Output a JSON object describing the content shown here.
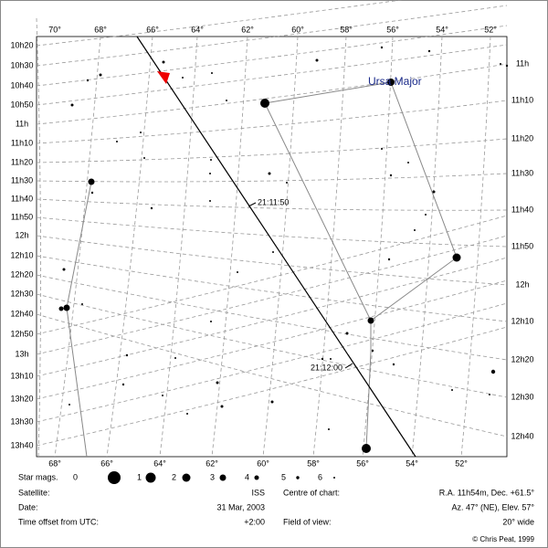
{
  "axes": {
    "top": [
      "70°",
      "68°",
      "66°",
      "64°",
      "62°",
      "60°",
      "58°",
      "56°",
      "54°",
      "52°"
    ],
    "left": [
      "10h20",
      "10h30",
      "10h40",
      "10h50",
      "11h",
      "11h10",
      "11h20",
      "11h30",
      "11h40",
      "11h50",
      "12h",
      "12h10",
      "12h20",
      "12h30",
      "12h40",
      "12h50",
      "13h",
      "13h10",
      "13h20",
      "13h30",
      "13h40"
    ],
    "right": [
      "11h",
      "11h10",
      "11h20",
      "11h30",
      "11h40",
      "11h50",
      "12h",
      "12h10",
      "12h20",
      "12h30",
      "12h40"
    ],
    "bottom": [
      "68°",
      "66°",
      "64°",
      "62°",
      "60°",
      "58°",
      "56°",
      "54°",
      "52°"
    ]
  },
  "labels": {
    "constellation": "Ursa Major",
    "times": [
      "21:11:50",
      "21:12:00"
    ]
  },
  "legend": {
    "title": "Star mags.",
    "mags": [
      "0",
      "1",
      "2",
      "3",
      "4",
      "5",
      "6"
    ]
  },
  "info": [
    {
      "label": "Satellite:",
      "value": "ISS"
    },
    {
      "label": "Date:",
      "value": "31 Mar, 2003"
    },
    {
      "label": "Time offset from UTC:",
      "value": "+2:00"
    },
    {
      "label": "Centre of chart:",
      "value": "R.A. 11h54m, Dec. +61.5°"
    },
    {
      "label": "",
      "value": "Az. 47° (NE), Elev. 57°"
    },
    {
      "label": "Field of view:",
      "value": "20° wide"
    }
  ],
  "copyright": "© Chris Peat, 1999"
}
